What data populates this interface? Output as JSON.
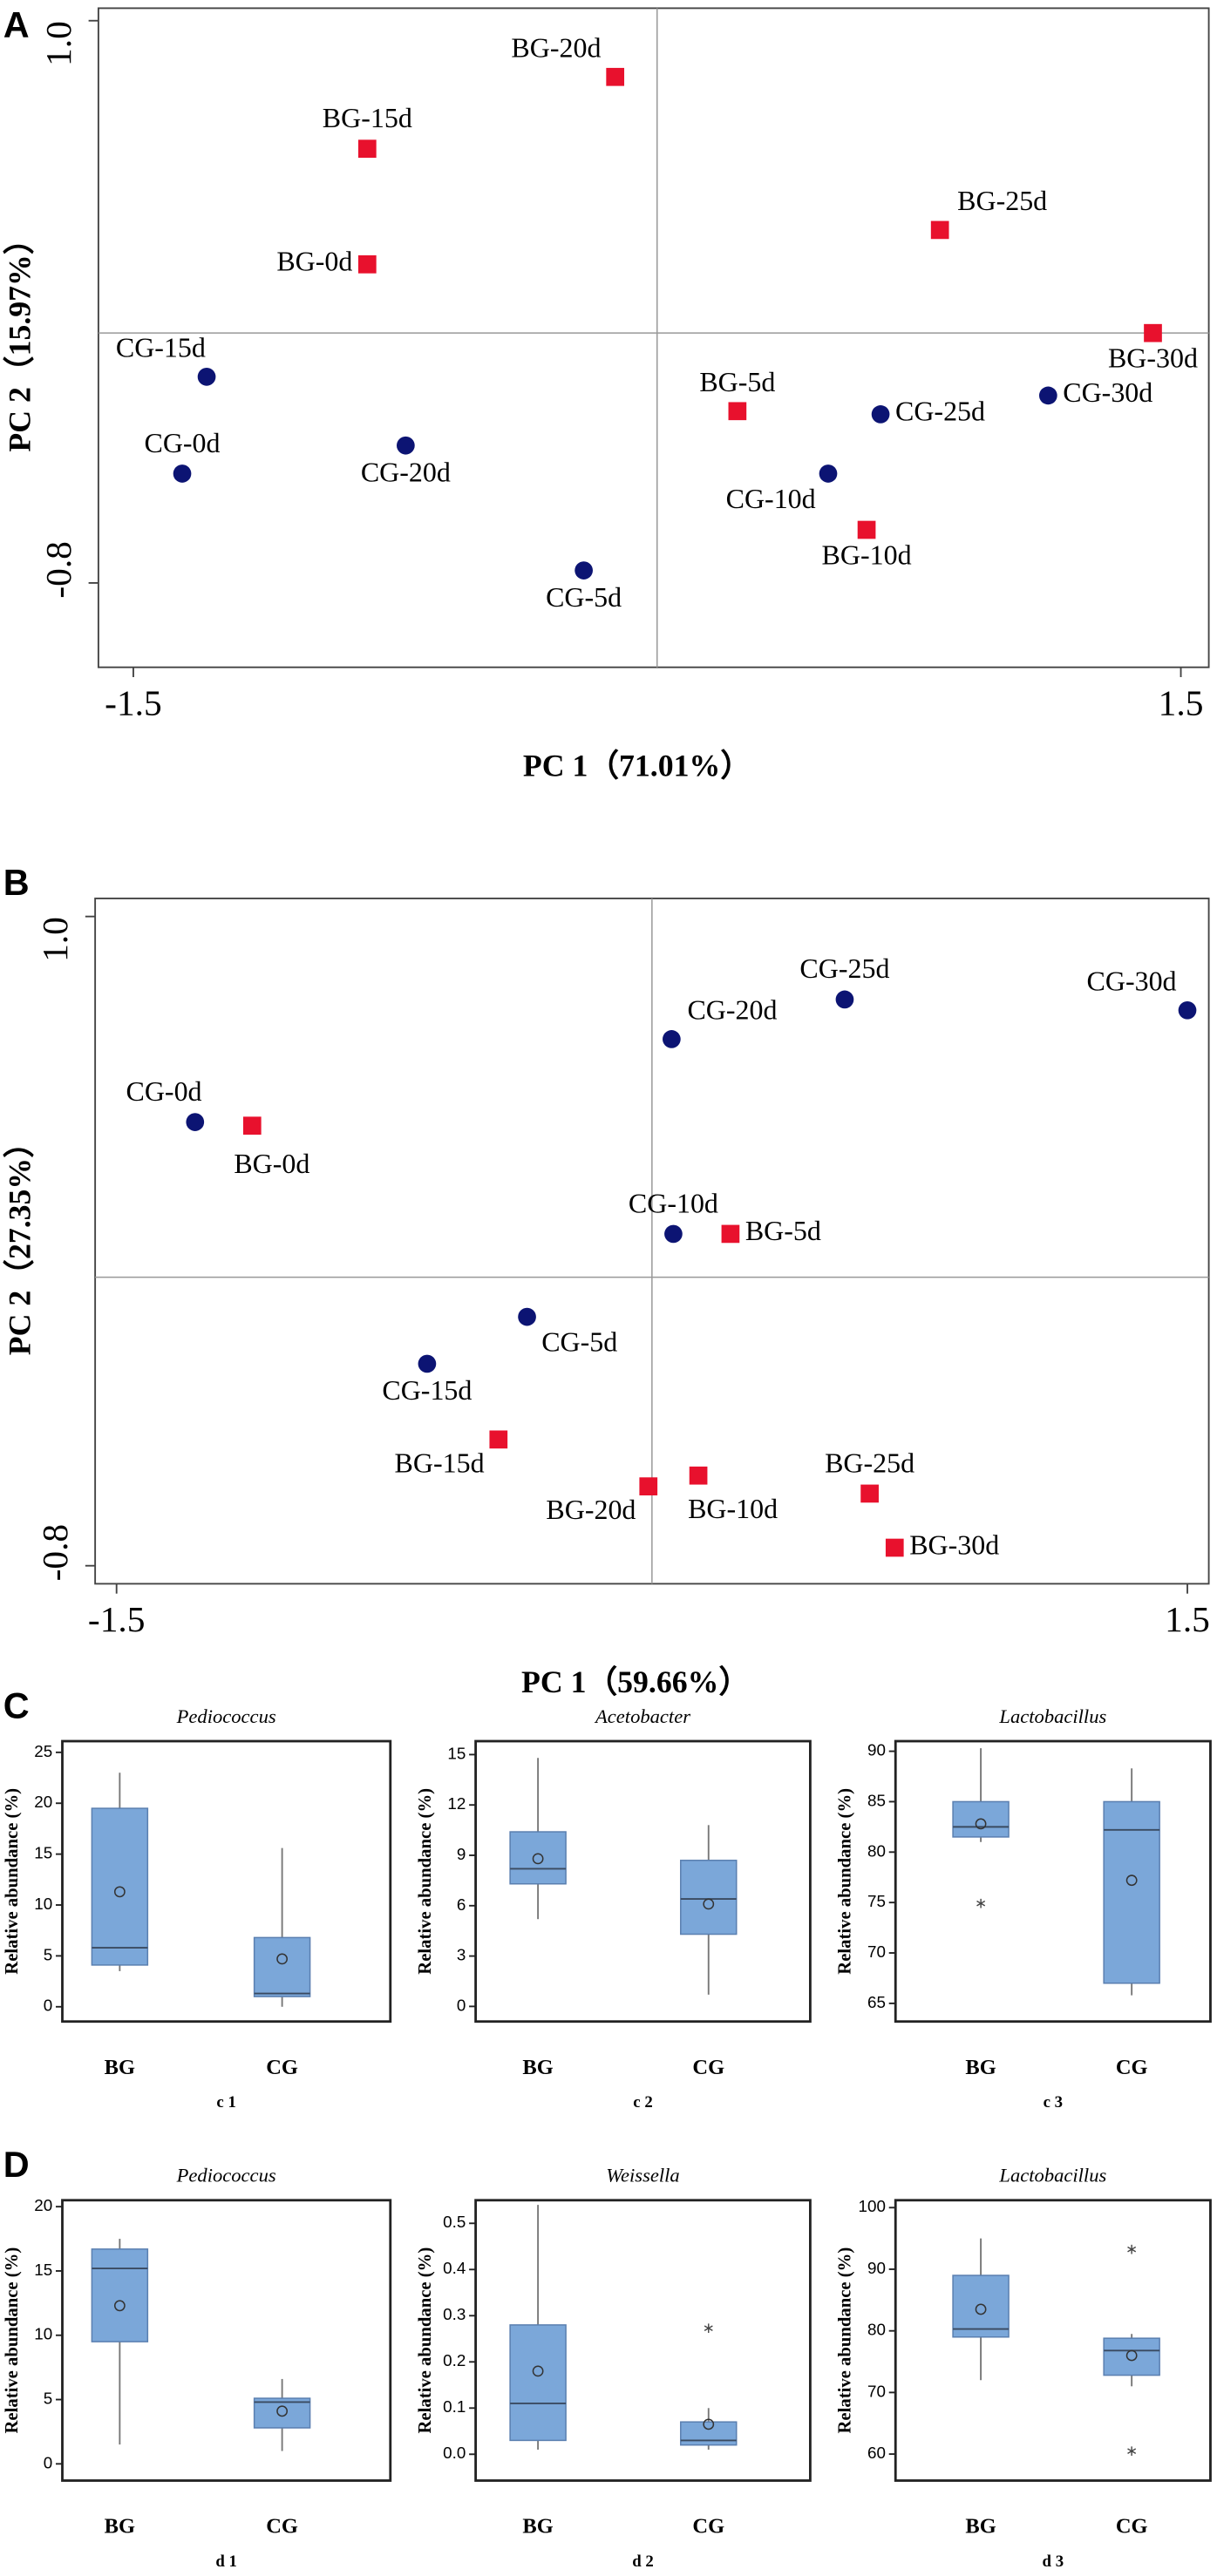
{
  "chart_data": [
    {
      "type": "scatter",
      "panel_label": "A",
      "xlabel": "PC 1（71.01%）",
      "ylabel": "PC 2（15.97%）",
      "xlim": [
        -1.6,
        1.58
      ],
      "ylim": [
        -1.07,
        1.04
      ],
      "xticks": [
        -1.5,
        1.5
      ],
      "yticks": [
        {
          "value": 1,
          "label": "1.0"
        },
        -0.8
      ],
      "series": [
        {
          "name": "BG",
          "color": "#e8112d",
          "marker": "square",
          "labels": [
            "BG-20d",
            "BG-15d",
            "BG-0d",
            "BG-25d",
            "BG-30d",
            "BG-5d",
            "BG-10d"
          ],
          "x": [
            -0.12,
            -0.83,
            -0.83,
            0.81,
            1.42,
            0.23,
            0.6
          ],
          "values": [
            0.82,
            0.59,
            0.22,
            0.33,
            0.0,
            -0.25,
            -0.63
          ]
        },
        {
          "name": "CG",
          "color": "#0c1473",
          "marker": "circle",
          "labels": [
            "CG-15d",
            "CG-0d",
            "CG-20d",
            "CG-5d",
            "CG-10d",
            "CG-25d",
            "CG-30d"
          ],
          "x": [
            -1.29,
            -1.36,
            -0.72,
            -0.21,
            0.49,
            0.64,
            1.12
          ],
          "values": [
            -0.14,
            -0.45,
            -0.36,
            -0.76,
            -0.45,
            -0.26,
            -0.2
          ]
        }
      ]
    },
    {
      "type": "scatter",
      "panel_label": "B",
      "xlabel": "PC 1（59.66%）",
      "ylabel": "PC 2（27.35%）",
      "xlim": [
        -1.56,
        1.56
      ],
      "ylim": [
        -0.85,
        1.05
      ],
      "xticks": [
        -1.5,
        1.5
      ],
      "yticks": [
        {
          "value": 1,
          "label": "1.0"
        },
        -0.8
      ],
      "series": [
        {
          "name": "BG",
          "color": "#e8112d",
          "marker": "square",
          "labels": [
            "BG-0d",
            "BG-5d",
            "BG-15d",
            "BG-20d",
            "BG-10d",
            "BG-25d",
            "BG-30d"
          ],
          "x": [
            -1.12,
            0.22,
            -0.43,
            -0.01,
            0.13,
            0.61,
            0.68
          ],
          "values": [
            0.42,
            0.12,
            -0.45,
            -0.58,
            -0.55,
            -0.6,
            -0.75
          ]
        },
        {
          "name": "CG",
          "color": "#0c1473",
          "marker": "circle",
          "labels": [
            "CG-0d",
            "CG-20d",
            "CG-25d",
            "CG-30d",
            "CG-10d",
            "CG-5d",
            "CG-15d"
          ],
          "x": [
            -1.28,
            0.055,
            0.54,
            1.5,
            0.06,
            -0.35,
            -0.63
          ],
          "values": [
            0.43,
            0.66,
            0.77,
            0.74,
            0.12,
            -0.11,
            -0.24
          ]
        }
      ]
    },
    {
      "type": "box",
      "panel_label": "C",
      "title": "Pediococcus",
      "ylabel": "Relative abundance (%)",
      "xlabel": "c 1",
      "color": "#7ba7d9",
      "categories": [
        "BG",
        "CG"
      ],
      "ylim": [
        -1.45,
        26.1
      ],
      "yticks": [
        0,
        5,
        10,
        15,
        20,
        25
      ],
      "boxes": [
        {
          "min": 3.5,
          "q1": 4.1,
          "median": 5.8,
          "q3": 19.5,
          "max": 23,
          "mean": 11.3,
          "outliers": []
        },
        {
          "min": 0,
          "q1": 1.0,
          "median": 1.3,
          "q3": 6.8,
          "max": 15.6,
          "mean": 4.7,
          "outliers": []
        }
      ]
    },
    {
      "type": "box",
      "title": "Acetobacter",
      "ylabel": "Relative abundance (%)",
      "xlabel": "c 2",
      "color": "#7ba7d9",
      "categories": [
        "BG",
        "CG"
      ],
      "ylim": [
        -0.9,
        15.8
      ],
      "yticks": [
        0,
        3,
        6,
        9,
        12,
        15
      ],
      "boxes": [
        {
          "min": 5.2,
          "q1": 7.3,
          "median": 8.2,
          "q3": 10.4,
          "max": 14.8,
          "mean": 8.8,
          "outliers": []
        },
        {
          "min": 0.7,
          "q1": 4.3,
          "median": 6.4,
          "q3": 8.7,
          "max": 10.8,
          "mean": 6.1,
          "outliers": []
        }
      ]
    },
    {
      "type": "box",
      "title": "Lactobacillus",
      "ylabel": "Relative abundance (%)",
      "xlabel": "c 3",
      "color": "#7ba7d9",
      "categories": [
        "BG",
        "CG"
      ],
      "ylim": [
        63.2,
        91
      ],
      "yticks": [
        65,
        70,
        75,
        80,
        85,
        90
      ],
      "boxes": [
        {
          "min": 81,
          "q1": 81.5,
          "median": 82.5,
          "q3": 85,
          "max": 90.3,
          "mean": 82.8,
          "outliers": [
            74.8
          ]
        },
        {
          "min": 65.8,
          "q1": 67,
          "median": 82.2,
          "q3": 85,
          "max": 88.3,
          "mean": 77.2,
          "outliers": []
        }
      ]
    },
    {
      "type": "box",
      "panel_label": "D",
      "title": "Pediococcus",
      "ylabel": "Relative abundance (%)",
      "xlabel": "d 1",
      "color": "#7ba7d9",
      "categories": [
        "BG",
        "CG"
      ],
      "ylim": [
        -1.3,
        20.5
      ],
      "yticks": [
        0,
        5,
        10,
        15,
        20
      ],
      "boxes": [
        {
          "min": 1.5,
          "q1": 9.5,
          "median": 15.2,
          "q3": 16.7,
          "max": 17.5,
          "mean": 12.3,
          "outliers": []
        },
        {
          "min": 1.0,
          "q1": 2.8,
          "median": 4.8,
          "q3": 5.1,
          "max": 6.6,
          "mean": 4.1,
          "outliers": []
        }
      ]
    },
    {
      "type": "box",
      "title": "Weissella",
      "ylabel": "Relative abundance (%)",
      "xlabel": "d 2",
      "color": "#7ba7d9",
      "categories": [
        "BG",
        "CG"
      ],
      "ylim": [
        -0.057,
        0.55
      ],
      "yticks": [
        {
          "value": 0,
          "label": "0.0"
        },
        0.1,
        0.2,
        0.3,
        0.4,
        0.5
      ],
      "boxes": [
        {
          "min": 0.01,
          "q1": 0.03,
          "median": 0.11,
          "q3": 0.28,
          "max": 0.54,
          "mean": 0.18,
          "outliers": []
        },
        {
          "min": 0.01,
          "q1": 0.02,
          "median": 0.03,
          "q3": 0.07,
          "max": 0.1,
          "mean": 0.065,
          "outliers": [
            0.27
          ]
        }
      ]
    },
    {
      "type": "box",
      "title": "Lactobacillus",
      "ylabel": "Relative abundance (%)",
      "xlabel": "d 3",
      "color": "#7ba7d9",
      "categories": [
        "BG",
        "CG"
      ],
      "ylim": [
        55.7,
        101.2
      ],
      "yticks": [
        60,
        70,
        80,
        90,
        100
      ],
      "boxes": [
        {
          "min": 72,
          "q1": 79,
          "median": 80.3,
          "q3": 89,
          "max": 95,
          "mean": 83.5,
          "outliers": []
        },
        {
          "min": 71,
          "q1": 72.8,
          "median": 76.8,
          "q3": 78.8,
          "max": 79.5,
          "mean": 76,
          "outliers": [
            93,
            60.3
          ]
        }
      ]
    }
  ]
}
